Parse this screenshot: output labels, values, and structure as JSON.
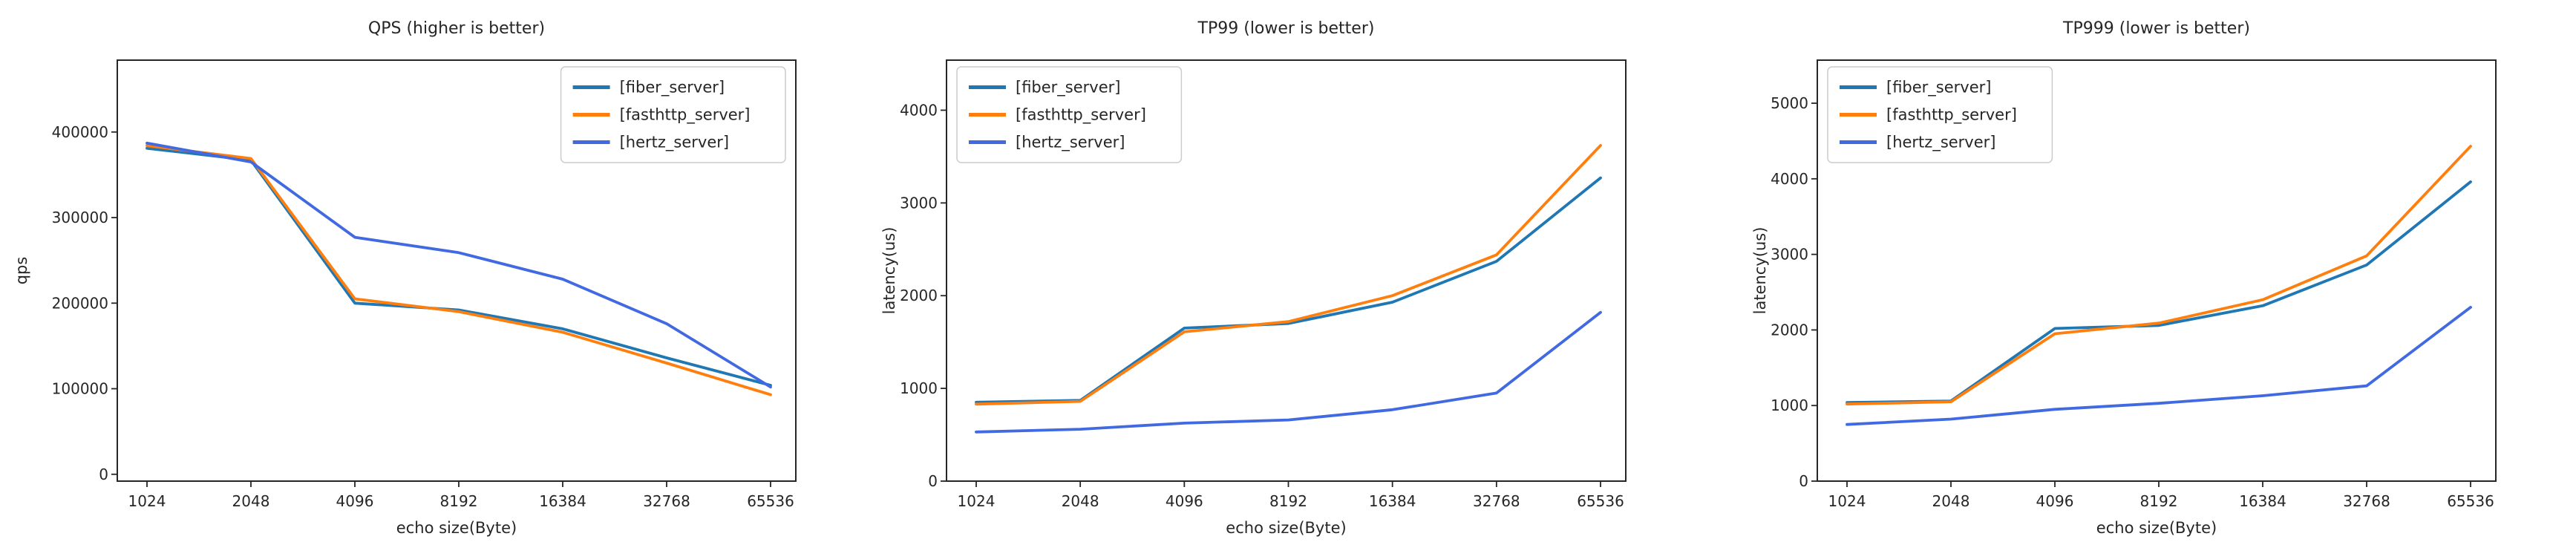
{
  "figure": {
    "background": "#ffffff",
    "axis_color": "#262626",
    "legend_border_color": "#cccccc",
    "legend_background": "#ffffff"
  },
  "colors": {
    "fiber_server": "#1f77b4",
    "fasthttp_server": "#ff7f0e",
    "hertz_server": "#4169e1"
  },
  "chart_data": [
    {
      "id": "qps",
      "type": "line",
      "title": "QPS (higher is better)",
      "xlabel": "echo size(Byte)",
      "ylabel": "qps",
      "categories": [
        "1024",
        "2048",
        "4096",
        "8192",
        "16384",
        "32768",
        "65536"
      ],
      "yticks": [
        0,
        100000,
        200000,
        300000,
        400000
      ],
      "ylim": [
        -8000,
        484000
      ],
      "grid": false,
      "legend_position": "top-right",
      "series": [
        {
          "name": "[fiber_server]",
          "color": "#1f77b4",
          "values": [
            381000,
            367000,
            200000,
            192000,
            170000,
            136000,
            104000
          ]
        },
        {
          "name": "[fasthttp_server]",
          "color": "#ff7f0e",
          "values": [
            384000,
            369000,
            205000,
            190000,
            166000,
            130000,
            93000
          ]
        },
        {
          "name": "[hertz_server]",
          "color": "#4169e1",
          "values": [
            387000,
            365000,
            277000,
            259000,
            228000,
            176000,
            102000
          ]
        }
      ]
    },
    {
      "id": "tp99",
      "type": "line",
      "title": "TP99 (lower is better)",
      "xlabel": "echo size(Byte)",
      "ylabel": "latency(us)",
      "categories": [
        "1024",
        "2048",
        "4096",
        "8192",
        "16384",
        "32768",
        "65536"
      ],
      "yticks": [
        0,
        1000,
        2000,
        3000,
        4000
      ],
      "ylim": [
        0,
        4540
      ],
      "grid": false,
      "legend_position": "top-left",
      "series": [
        {
          "name": "[fiber_server]",
          "color": "#1f77b4",
          "values": [
            850,
            870,
            1650,
            1700,
            1930,
            2370,
            3270
          ]
        },
        {
          "name": "[fasthttp_server]",
          "color": "#ff7f0e",
          "values": [
            830,
            860,
            1610,
            1720,
            2000,
            2440,
            3620
          ]
        },
        {
          "name": "[hertz_server]",
          "color": "#4169e1",
          "values": [
            530,
            560,
            625,
            660,
            770,
            950,
            1820
          ]
        }
      ]
    },
    {
      "id": "tp999",
      "type": "line",
      "title": "TP999 (lower is better)",
      "xlabel": "echo size(Byte)",
      "ylabel": "latency(us)",
      "categories": [
        "1024",
        "2048",
        "4096",
        "8192",
        "16384",
        "32768",
        "65536"
      ],
      "yticks": [
        0,
        1000,
        2000,
        3000,
        4000,
        5000
      ],
      "ylim": [
        0,
        5570
      ],
      "grid": false,
      "legend_position": "top-left",
      "series": [
        {
          "name": "[fiber_server]",
          "color": "#1f77b4",
          "values": [
            1040,
            1060,
            2020,
            2060,
            2320,
            2860,
            3960
          ]
        },
        {
          "name": "[fasthttp_server]",
          "color": "#ff7f0e",
          "values": [
            1020,
            1050,
            1950,
            2090,
            2400,
            2980,
            4430
          ]
        },
        {
          "name": "[hertz_server]",
          "color": "#4169e1",
          "values": [
            750,
            820,
            950,
            1030,
            1130,
            1260,
            2300
          ]
        }
      ]
    }
  ]
}
